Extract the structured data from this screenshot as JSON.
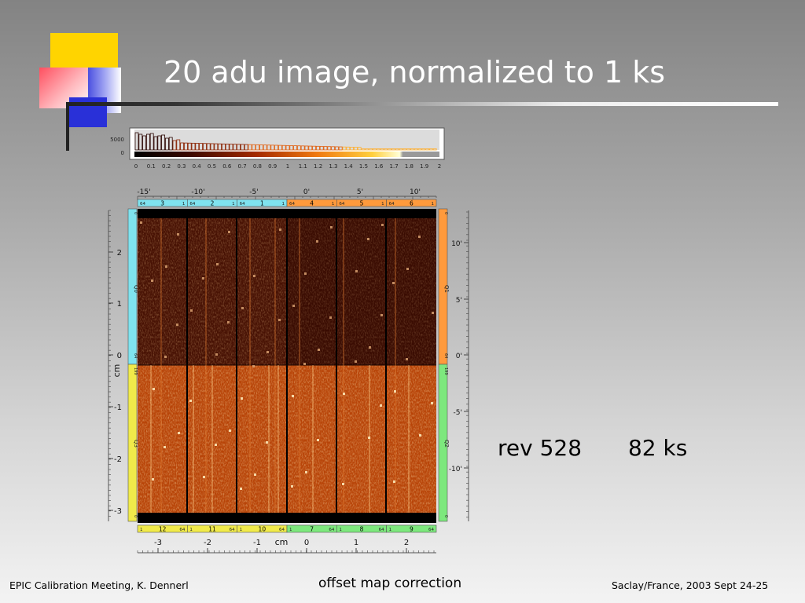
{
  "slide": {
    "title": "20 adu image, normalized to 1 ks",
    "stats": {
      "rev": "rev 528",
      "exposure": "82 ks"
    },
    "footer": {
      "left": "EPIC Calibration Meeting, K. Dennerl",
      "center": "offset map correction",
      "right": "Saclay/France, 2003 Sept 24-25"
    }
  },
  "figure": {
    "histogram": {
      "ytick_labels": [
        "5000",
        "0"
      ],
      "xtick_labels": [
        "0",
        "0.1",
        "0.2",
        "0.3",
        "0.4",
        "0.5",
        "0.6",
        "0.7",
        "0.8",
        "0.9",
        "1",
        "1.1",
        "1.2",
        "1.3",
        "1.4",
        "1.5",
        "1.6",
        "1.7",
        "1.8",
        "1.9",
        "2"
      ]
    },
    "top_arcmin_labels": [
      "-15'",
      "-10'",
      "-5'",
      "0'",
      "5'",
      "10'"
    ],
    "top_ccds": [
      {
        "left": "64",
        "num": "3",
        "right": "1",
        "color": "#7fe3ef"
      },
      {
        "left": "64",
        "num": "2",
        "right": "1",
        "color": "#7fe3ef"
      },
      {
        "left": "64",
        "num": "1",
        "right": "1",
        "color": "#7fe3ef"
      },
      {
        "left": "64",
        "num": "4",
        "right": "1",
        "color": "#ff9a3c"
      },
      {
        "left": "64",
        "num": "5",
        "right": "1",
        "color": "#ff9a3c"
      },
      {
        "left": "64",
        "num": "6",
        "right": "1",
        "color": "#ff9a3c"
      }
    ],
    "bottom_ccds": [
      {
        "left": "1",
        "num": "12",
        "right": "64",
        "color": "#f0ea4a"
      },
      {
        "left": "1",
        "num": "11",
        "right": "64",
        "color": "#f0ea4a"
      },
      {
        "left": "1",
        "num": "10",
        "right": "64",
        "color": "#f0ea4a"
      },
      {
        "left": "1",
        "num": "7",
        "right": "64",
        "color": "#7de87d"
      },
      {
        "left": "1",
        "num": "8",
        "right": "64",
        "color": "#7de87d"
      },
      {
        "left": "1",
        "num": "9",
        "right": "64",
        "color": "#7de87d"
      }
    ],
    "left_cm_labels": [
      "2",
      "1",
      "0",
      "-1",
      "-2",
      "-3"
    ],
    "left_axis_unit": "cm",
    "right_arcmin_labels": [
      "10'",
      "5'",
      "0'",
      "-5'",
      "-10'"
    ],
    "bottom_cm_labels": [
      "-3",
      "-2",
      "-1",
      "0",
      "1",
      "2"
    ],
    "bottom_axis_unit": "cm",
    "left_quadrant_labels": [
      "Q0",
      "Q3"
    ],
    "right_quadrant_labels": [
      "Q1",
      "Q2"
    ],
    "left_strip_marks": [
      "0",
      "64",
      "199",
      "0"
    ],
    "right_strip_marks": [
      "0",
      "64",
      "199",
      "0"
    ]
  }
}
